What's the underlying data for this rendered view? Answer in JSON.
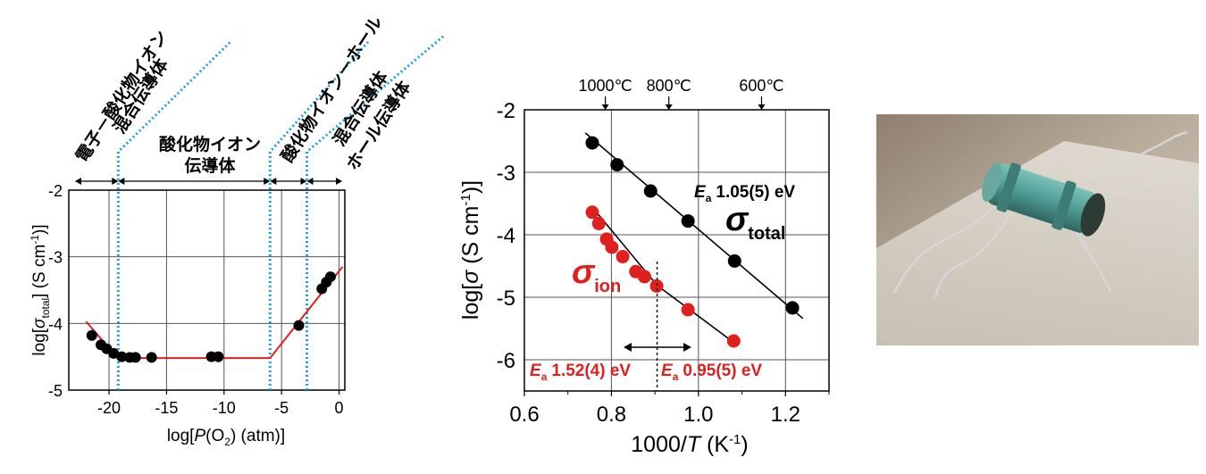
{
  "chart_data": [
    {
      "type": "scatter",
      "xlabel_pre": "log[",
      "xlabel_var": "P",
      "xlabel_post": "(O",
      "xlabel_sub": "2",
      "xlabel_end": ") (atm)]",
      "ylabel_pre": "log[",
      "ylabel_var": "σ",
      "ylabel_sub": "total",
      "ylabel_post": "] (S cm",
      "ylabel_sup": "-1",
      "ylabel_end": ")]",
      "xlim": [
        -23.5,
        0.5
      ],
      "ylim": [
        -5,
        -2
      ],
      "xticks": [
        -20,
        -15,
        -10,
        -5,
        0
      ],
      "yticks": [
        -2,
        -3,
        -4,
        -5
      ],
      "points": [
        {
          "x": -21.5,
          "y": -4.18
        },
        {
          "x": -20.7,
          "y": -4.32
        },
        {
          "x": -20.2,
          "y": -4.38
        },
        {
          "x": -19.6,
          "y": -4.45
        },
        {
          "x": -18.9,
          "y": -4.5
        },
        {
          "x": -18.2,
          "y": -4.51
        },
        {
          "x": -17.7,
          "y": -4.51
        },
        {
          "x": -16.3,
          "y": -4.51
        },
        {
          "x": -11.1,
          "y": -4.5
        },
        {
          "x": -10.5,
          "y": -4.5
        },
        {
          "x": -3.5,
          "y": -4.03
        },
        {
          "x": -1.5,
          "y": -3.48
        },
        {
          "x": -1.1,
          "y": -3.38
        },
        {
          "x": -0.75,
          "y": -3.3
        }
      ],
      "fit_line": {
        "color": "#e0201e",
        "points": [
          {
            "x": -22,
            "y": -3.97
          },
          {
            "x": -19.5,
            "y": -4.47
          },
          {
            "x": -19,
            "y": -4.52
          },
          {
            "x": -6,
            "y": -4.52
          },
          {
            "x": 0.3,
            "y": -3.15
          }
        ]
      },
      "boundaries_x": [
        -19.2,
        -6,
        -2.8
      ],
      "regions": [
        {
          "label": "電子－酸化物イオン",
          "label2": "混合伝導体"
        },
        {
          "label": "酸化物イオン",
          "label2": "伝導体"
        },
        {
          "label": "酸化物イオン－ホール",
          "label2": "混合伝導体"
        },
        {
          "label": "ホール伝導体",
          "label2": ""
        }
      ],
      "grid": true
    },
    {
      "type": "scatter",
      "xlabel_pre": "1000/",
      "xlabel_var": "T",
      "xlabel_post": " (K",
      "xlabel_sup": "-1",
      "xlabel_end": ")",
      "ylabel_pre": "log[",
      "ylabel_var": "σ",
      "ylabel_post": " (S cm",
      "ylabel_sup": "-1",
      "ylabel_end": ")]",
      "xlim": [
        0.6,
        1.3
      ],
      "ylim": [
        -6.5,
        -2
      ],
      "xticks": [
        0.6,
        0.8,
        1.0,
        1.2
      ],
      "xtick_labels": [
        "0.6",
        "0.8",
        "1.0",
        "1.2"
      ],
      "yticks": [
        -2,
        -3,
        -4,
        -5,
        -6
      ],
      "top_axis": [
        {
          "label": "1000℃",
          "x": 0.786
        },
        {
          "label": "800℃",
          "x": 0.932
        },
        {
          "label": "600℃",
          "x": 1.145
        }
      ],
      "series": [
        {
          "name": "total",
          "color": "#000000",
          "points": [
            {
              "x": 0.756,
              "y": -2.53
            },
            {
              "x": 0.813,
              "y": -2.88
            },
            {
              "x": 0.89,
              "y": -3.3
            },
            {
              "x": 0.976,
              "y": -3.78
            },
            {
              "x": 1.083,
              "y": -4.42
            },
            {
              "x": 1.216,
              "y": -5.17
            }
          ],
          "fit": [
            {
              "x": 0.74,
              "y": -2.37
            },
            {
              "x": 1.24,
              "y": -5.34
            }
          ],
          "ea_label": "1.05(5) eV"
        },
        {
          "name": "ion",
          "color": "#e0201e",
          "points": [
            {
              "x": 0.756,
              "y": -3.64
            },
            {
              "x": 0.771,
              "y": -3.82
            },
            {
              "x": 0.789,
              "y": -4.07
            },
            {
              "x": 0.801,
              "y": -4.2
            },
            {
              "x": 0.826,
              "y": -4.35
            },
            {
              "x": 0.856,
              "y": -4.59
            },
            {
              "x": 0.876,
              "y": -4.67
            },
            {
              "x": 0.904,
              "y": -4.82
            },
            {
              "x": 0.976,
              "y": -5.2
            },
            {
              "x": 1.081,
              "y": -5.7
            }
          ],
          "fit": [
            {
              "x": 0.755,
              "y": -3.55
            },
            {
              "x": 0.905,
              "y": -4.81
            },
            {
              "x": 1.09,
              "y": -5.77
            }
          ],
          "ea_low_label": "1.52(4) eV",
          "ea_high_label": "0.95(5) eV"
        }
      ],
      "divider_x": 0.905,
      "sigma_total_main": "σ",
      "sigma_total_sub": "total",
      "sigma_ion_main": "σ",
      "sigma_ion_sub": "ion",
      "ea_main": "E",
      "ea_sub": "a",
      "grid": true
    }
  ],
  "photo": {
    "bg_color": "#a89a88",
    "rod_color": "#4f9b94"
  }
}
